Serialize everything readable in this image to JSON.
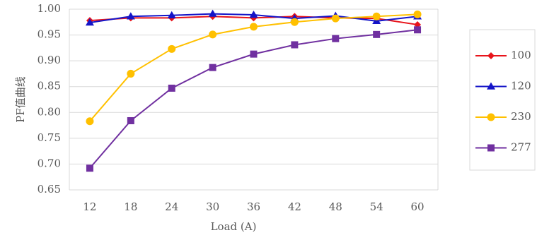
{
  "chart_data": {
    "type": "line",
    "title": "",
    "xlabel": "Load (A)",
    "ylabel": "PF值曲线",
    "x": [
      12,
      18,
      24,
      30,
      36,
      42,
      48,
      54,
      60
    ],
    "ylim": [
      0.65,
      1.0
    ],
    "yticks": [
      "0.65",
      "0.70",
      "0.75",
      "0.80",
      "0.85",
      "0.90",
      "0.95",
      "1.00"
    ],
    "grid": "horizontal",
    "legend_position": "right",
    "series": [
      {
        "name": "100",
        "color": "#E8141B",
        "marker": "diamond",
        "values": [
          0.978,
          0.983,
          0.983,
          0.986,
          0.983,
          0.986,
          0.983,
          0.982,
          0.97
        ]
      },
      {
        "name": "120",
        "color": "#1414C8",
        "marker": "triangle",
        "values": [
          0.974,
          0.986,
          0.988,
          0.991,
          0.989,
          0.982,
          0.987,
          0.977,
          0.986
        ]
      },
      {
        "name": "230",
        "color": "#FFC000",
        "marker": "circle",
        "values": [
          0.783,
          0.875,
          0.923,
          0.951,
          0.966,
          0.975,
          0.982,
          0.986,
          0.99
        ]
      },
      {
        "name": "277",
        "color": "#7030A0",
        "marker": "square",
        "values": [
          0.692,
          0.784,
          0.847,
          0.887,
          0.913,
          0.931,
          0.943,
          0.951,
          0.96
        ]
      }
    ]
  }
}
